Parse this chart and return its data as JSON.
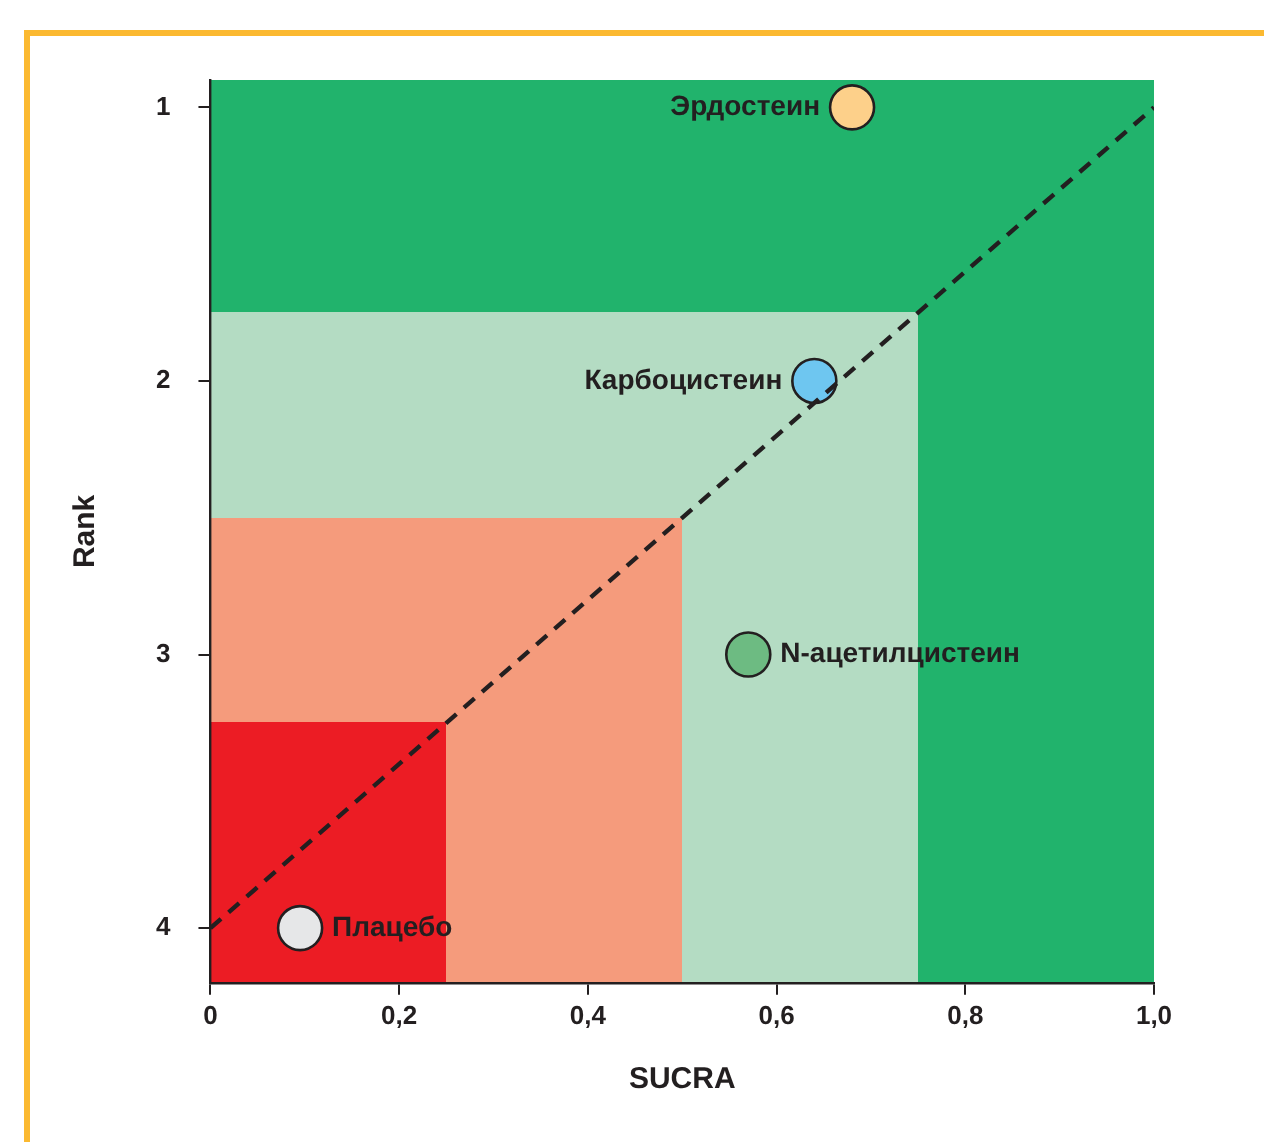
{
  "chart_data": {
    "type": "scatter",
    "xlabel": "SUCRA",
    "ylabel": "Rank",
    "xlim": [
      0,
      1
    ],
    "ylim": [
      4.2,
      0.9
    ],
    "xticks": [
      0,
      {
        "value": 0.2,
        "label": "0,2"
      },
      {
        "value": 0.4,
        "label": "0,4"
      },
      {
        "value": 0.6,
        "label": "0,6"
      },
      {
        "value": 0.8,
        "label": "0,8"
      },
      {
        "value": 1,
        "label": "1,0"
      }
    ],
    "yticks": [
      1,
      2,
      3,
      4
    ],
    "grid": false,
    "legend": false,
    "marker": "circle",
    "series": [
      {
        "type": "line",
        "color": "#231f20",
        "line_style": "dashed",
        "marker": "none",
        "x": [
          0,
          1
        ],
        "values": [
          4,
          1
        ]
      },
      {
        "name": "Эрдостеин",
        "color": "#fdd08a",
        "x": [
          0.68
        ],
        "values": [
          1
        ]
      },
      {
        "name": "Карбоцистеин",
        "color": "#6ec6f0",
        "x": [
          0.64
        ],
        "values": [
          2
        ]
      },
      {
        "name": "N-ацетилцистеин",
        "color": "#6dbb82",
        "x": [
          0.57
        ],
        "values": [
          3
        ]
      },
      {
        "name": "Плацебо",
        "color": "#e6e7e8",
        "x": [
          0.095
        ],
        "values": [
          4
        ]
      }
    ]
  }
}
